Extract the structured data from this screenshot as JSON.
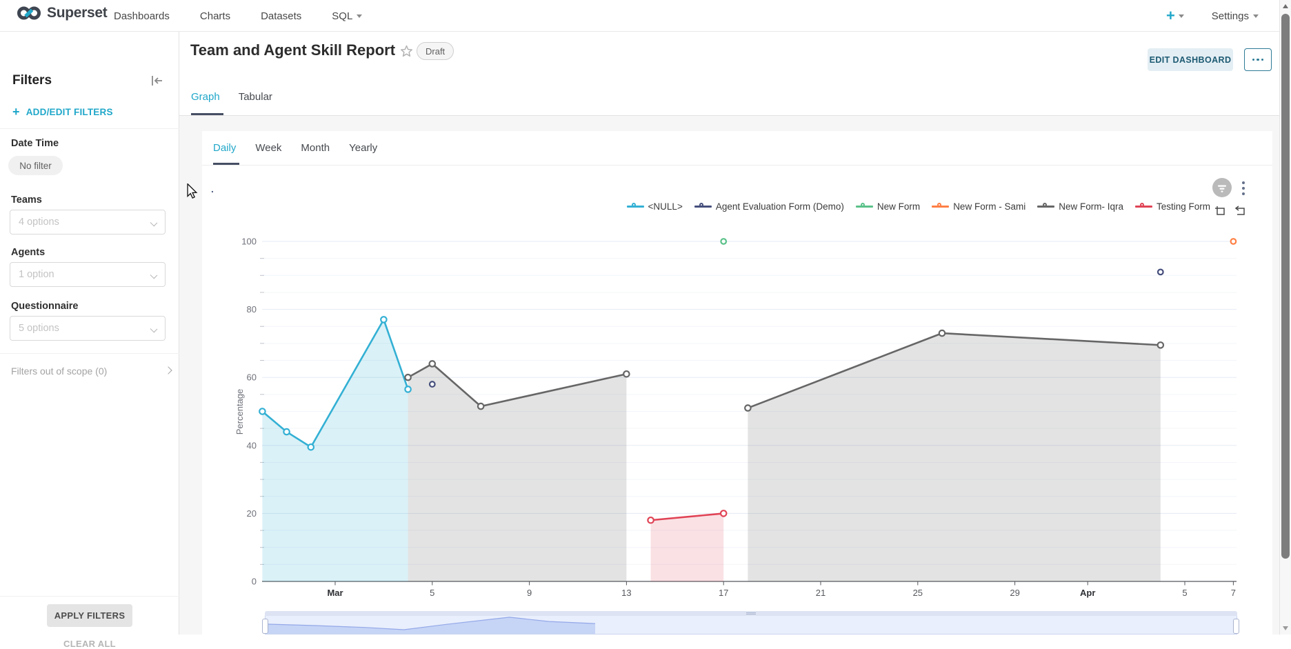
{
  "nav": {
    "brand": "Superset",
    "items": [
      {
        "label": "Dashboards"
      },
      {
        "label": "Charts"
      },
      {
        "label": "Datasets"
      },
      {
        "label": "SQL"
      }
    ],
    "plus": "+",
    "settings": "Settings"
  },
  "sidebar": {
    "title": "Filters",
    "add_edit": "ADD/EDIT FILTERS",
    "groups": [
      {
        "label": "Date Time",
        "value": "No filter"
      },
      {
        "label": "Teams",
        "value": "4 options"
      },
      {
        "label": "Agents",
        "value": "1 option"
      },
      {
        "label": "Questionnaire",
        "value": "5 options"
      }
    ],
    "out_of_scope": "Filters out of scope (0)",
    "apply": "APPLY FILTERS",
    "clear": "CLEAR ALL"
  },
  "header": {
    "title": "Team and Agent Skill Report",
    "badge": "Draft",
    "edit_button": "EDIT DASHBOARD"
  },
  "page_tabs": [
    {
      "label": "Graph",
      "active": true
    },
    {
      "label": "Tabular",
      "active": false
    }
  ],
  "chart_tabs": [
    {
      "label": "Daily",
      "active": true
    },
    {
      "label": "Week",
      "active": false
    },
    {
      "label": "Month",
      "active": false
    },
    {
      "label": "Yearly",
      "active": false
    }
  ],
  "icons": {
    "brand": "superset-infinity-logo",
    "collapse": "collapse-sidebar-icon",
    "star": "star-outline-icon",
    "more": "ellipsis-icon",
    "filter_badge": "filter-funnel-icon",
    "kebab": "kebab-menu-icon",
    "toolbox": [
      "zoom-select-icon",
      "restore-icon"
    ],
    "cursor": "mouse-cursor"
  },
  "chart_data": {
    "type": "line",
    "title": ".",
    "ylabel": "Percentage",
    "ylim": [
      0,
      100
    ],
    "y_major_interval": 20,
    "y_minor_interval": 5,
    "x_axis_note": "days are offsets from Feb 26; Mar = Mar 1, Apr = Apr 1",
    "x_ticks": [
      {
        "label": "Mar",
        "day": 3,
        "bold": true
      },
      {
        "label": "5",
        "day": 7
      },
      {
        "label": "9",
        "day": 11
      },
      {
        "label": "13",
        "day": 15
      },
      {
        "label": "17",
        "day": 19
      },
      {
        "label": "21",
        "day": 23
      },
      {
        "label": "25",
        "day": 27
      },
      {
        "label": "29",
        "day": 31
      },
      {
        "label": "Apr",
        "day": 34,
        "bold": true
      },
      {
        "label": "5",
        "day": 38
      },
      {
        "label": "7",
        "day": 40
      }
    ],
    "legend": [
      {
        "label": "<NULL>",
        "color": "#33B0D4"
      },
      {
        "label": "Agent Evaluation Form (Demo)",
        "color": "#454E7C"
      },
      {
        "label": "New Form",
        "color": "#5AC189"
      },
      {
        "label": "New Form - Sami",
        "color": "#FF7F44"
      },
      {
        "label": "New Form- Iqra",
        "color": "#666666"
      },
      {
        "label": "Testing Form",
        "color": "#E04355"
      }
    ],
    "series": [
      {
        "name": "<NULL>",
        "color": "#33B0D4",
        "area_color": "rgba(51,176,212,0.18)",
        "segments": [
          [
            [
              0,
              50
            ],
            [
              1,
              44
            ],
            [
              2,
              39.5
            ],
            [
              5,
              77
            ],
            [
              6,
              56.5
            ]
          ]
        ]
      },
      {
        "name": "New Form- Iqra",
        "color": "#666666",
        "area_color": "rgba(102,102,102,0.18)",
        "segments": [
          [
            [
              6,
              60
            ],
            [
              7,
              64
            ],
            [
              9,
              51.5
            ],
            [
              15,
              61
            ]
          ],
          [
            [
              20,
              51
            ],
            [
              28,
              73
            ],
            [
              37,
              69.5
            ]
          ]
        ]
      },
      {
        "name": "Testing Form",
        "color": "#E04355",
        "area_color": "rgba(224,67,85,0.16)",
        "segments": [
          [
            [
              16,
              18
            ],
            [
              19,
              20
            ]
          ]
        ]
      },
      {
        "name": "Agent Evaluation Form (Demo)",
        "color": "#454E7C",
        "area_color": null,
        "segments": [
          [
            [
              7,
              58
            ]
          ],
          [
            [
              37,
              91
            ]
          ]
        ]
      },
      {
        "name": "New Form",
        "color": "#5AC189",
        "area_color": null,
        "segments": [
          [
            [
              19,
              100
            ]
          ]
        ]
      },
      {
        "name": "New Form - Sami",
        "color": "#FF7F44",
        "area_color": null,
        "segments": [
          [
            [
              40,
              100
            ]
          ]
        ]
      }
    ],
    "datazoom_overview": [
      [
        0,
        0.44
      ],
      [
        0.15,
        0.52
      ],
      [
        0.3,
        0.62
      ],
      [
        0.42,
        0.74
      ],
      [
        0.55,
        0.45
      ],
      [
        0.74,
        0.07
      ],
      [
        0.86,
        0.3
      ],
      [
        1,
        0.41
      ]
    ]
  }
}
